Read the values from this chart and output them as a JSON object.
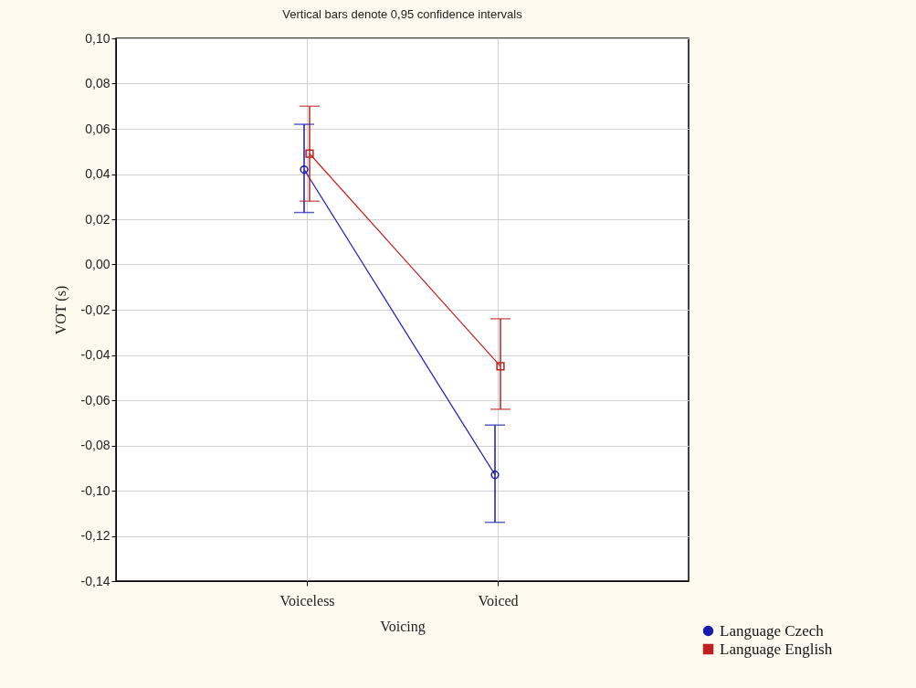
{
  "chart_data": {
    "type": "line",
    "title": "Vertical bars denote 0,95 confidence intervals",
    "xlabel": "Voicing",
    "ylabel": "VOT (s)",
    "categories": [
      "Voiceless",
      "Voiced"
    ],
    "series": [
      {
        "name": "Language Czech",
        "color": "#1a1ab0",
        "marker": "circle",
        "values": [
          0.042,
          -0.093
        ],
        "errors": [
          [
            0.023,
            0.062
          ],
          [
            -0.114,
            -0.071
          ]
        ]
      },
      {
        "name": "Language English",
        "color": "#c02020",
        "marker": "square",
        "values": [
          0.049,
          -0.045
        ],
        "errors": [
          [
            0.028,
            0.07
          ],
          [
            -0.064,
            -0.024
          ]
        ]
      }
    ],
    "ylim": [
      -0.14,
      0.1
    ],
    "yticks": [
      {
        "value": -0.14,
        "label": "-0,14"
      },
      {
        "value": -0.12,
        "label": "-0,12"
      },
      {
        "value": -0.1,
        "label": "-0,10"
      },
      {
        "value": -0.08,
        "label": "-0,08"
      },
      {
        "value": -0.06,
        "label": "-0,06"
      },
      {
        "value": -0.04,
        "label": "-0,04"
      },
      {
        "value": -0.02,
        "label": "-0,02"
      },
      {
        "value": 0,
        "label": "0,00"
      },
      {
        "value": 0.02,
        "label": "0,02"
      },
      {
        "value": 0.04,
        "label": "0,04"
      },
      {
        "value": 0.06,
        "label": "0,06"
      },
      {
        "value": 0.08,
        "label": "0,08"
      },
      {
        "value": 0.1,
        "label": "0,10"
      }
    ],
    "grid": true,
    "legend": "bottom right",
    "line_style": "solid"
  }
}
